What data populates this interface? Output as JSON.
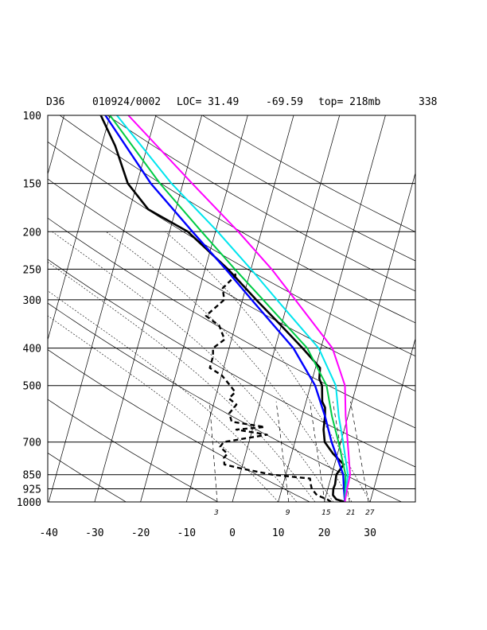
{
  "header": {
    "station": "D36",
    "datetime": "010924/0002",
    "location": "LOC= 31.49",
    "longitude": "-69.59",
    "top": "top= 218mb",
    "extra": "338"
  },
  "chart_data": {
    "type": "line",
    "title": "D36   010924/0002 LOC= 31.49   -69.59  top= 218mb   338",
    "xlabel": "",
    "ylabel": "",
    "pressure_ticks": [
      "100",
      "150",
      "200",
      "250",
      "300",
      "400",
      "500",
      "700",
      "850",
      "925",
      "1000"
    ],
    "pressure_values": [
      100,
      150,
      200,
      250,
      300,
      400,
      500,
      700,
      850,
      925,
      1000
    ],
    "temp_ticks": [
      "-40",
      "-30",
      "-20",
      "-10",
      "0",
      "10",
      "20",
      "30"
    ],
    "temp_values": [
      -40,
      -30,
      -20,
      -10,
      0,
      10,
      20,
      30
    ],
    "mixing_ratio_labels": [
      "3",
      "9",
      "15",
      "21",
      "27"
    ],
    "xlim": [
      -40,
      40
    ],
    "ylim": [
      1000,
      100
    ],
    "y_scale": "log",
    "grid": true,
    "series": [
      {
        "color": "#000000",
        "style": "solid",
        "points": [
          [
            1000,
            24.5
          ],
          [
            985,
            22.5
          ],
          [
            960,
            21.5
          ],
          [
            925,
            21.2
          ],
          [
            900,
            21.3
          ],
          [
            850,
            21.0
          ],
          [
            800,
            22.0
          ],
          [
            750,
            19.0
          ],
          [
            700,
            16.5
          ],
          [
            650,
            15.5
          ],
          [
            600,
            15.0
          ],
          [
            570,
            14.5
          ],
          [
            550,
            13.5
          ],
          [
            500,
            12.5
          ],
          [
            480,
            11.5
          ],
          [
            450,
            11.0
          ],
          [
            400,
            6.0
          ],
          [
            350,
            0.0
          ],
          [
            300,
            -7.0
          ],
          [
            250,
            -15.0
          ],
          [
            200,
            -26.0
          ],
          [
            175,
            -36.0
          ],
          [
            150,
            -42.0
          ],
          [
            120,
            -47.0
          ],
          [
            100,
            -52.0
          ]
        ]
      },
      {
        "color": "#000000",
        "style": "dashed",
        "points": [
          [
            1000,
            21.5
          ],
          [
            985,
            20.5
          ],
          [
            960,
            18.0
          ],
          [
            925,
            16.5
          ],
          [
            900,
            16.0
          ],
          [
            870,
            15.5
          ],
          [
            850,
            7.0
          ],
          [
            820,
            0.0
          ],
          [
            800,
            -4.0
          ],
          [
            770,
            -4.5
          ],
          [
            750,
            -4.0
          ],
          [
            720,
            -6.0
          ],
          [
            700,
            -5.5
          ],
          [
            670,
            3.5
          ],
          [
            650,
            -3.5
          ],
          [
            640,
            2.5
          ],
          [
            620,
            -5.0
          ],
          [
            590,
            -6.0
          ],
          [
            560,
            -5.0
          ],
          [
            540,
            -7.0
          ],
          [
            520,
            -6.0
          ],
          [
            500,
            -7.5
          ],
          [
            470,
            -10.0
          ],
          [
            450,
            -13.0
          ],
          [
            420,
            -13.0
          ],
          [
            400,
            -13.5
          ],
          [
            380,
            -11.5
          ],
          [
            350,
            -13.5
          ],
          [
            330,
            -17.0
          ],
          [
            300,
            -14.0
          ],
          [
            280,
            -15.0
          ],
          [
            260,
            -13.0
          ],
          [
            250,
            -13.5
          ]
        ]
      },
      {
        "color": "#0000ff",
        "style": "solid",
        "points": [
          [
            1000,
            24.5
          ],
          [
            925,
            23.5
          ],
          [
            850,
            22.5
          ],
          [
            700,
            18.0
          ],
          [
            600,
            15.0
          ],
          [
            500,
            11.0
          ],
          [
            400,
            4.0
          ],
          [
            300,
            -8.0
          ],
          [
            250,
            -15.5
          ],
          [
            200,
            -25.0
          ],
          [
            150,
            -37.0
          ],
          [
            100,
            -51.0
          ]
        ]
      },
      {
        "color": "#00cc44",
        "style": "solid",
        "points": [
          [
            1000,
            24.5
          ],
          [
            925,
            23.8
          ],
          [
            850,
            23.0
          ],
          [
            700,
            19.5
          ],
          [
            600,
            16.5
          ],
          [
            500,
            13.5
          ],
          [
            400,
            7.0
          ],
          [
            300,
            -5.5
          ],
          [
            250,
            -13.5
          ],
          [
            200,
            -23.0
          ],
          [
            150,
            -35.0
          ],
          [
            100,
            -50.0
          ]
        ]
      },
      {
        "color": "#00e5ee",
        "style": "solid",
        "points": [
          [
            1000,
            24.5
          ],
          [
            925,
            24.0
          ],
          [
            850,
            23.5
          ],
          [
            700,
            20.5
          ],
          [
            600,
            18.0
          ],
          [
            500,
            15.5
          ],
          [
            400,
            9.5
          ],
          [
            300,
            -2.5
          ],
          [
            250,
            -10.0
          ],
          [
            200,
            -19.5
          ],
          [
            150,
            -32.5
          ],
          [
            100,
            -48.5
          ]
        ]
      },
      {
        "color": "#ff00ff",
        "style": "solid",
        "points": [
          [
            1000,
            24.5
          ],
          [
            925,
            24.2
          ],
          [
            850,
            24.0
          ],
          [
            700,
            21.5
          ],
          [
            600,
            19.5
          ],
          [
            500,
            17.5
          ],
          [
            400,
            12.5
          ],
          [
            300,
            1.5
          ],
          [
            250,
            -5.5
          ],
          [
            200,
            -15.0
          ],
          [
            150,
            -28.0
          ],
          [
            100,
            -46.0
          ]
        ]
      }
    ]
  }
}
